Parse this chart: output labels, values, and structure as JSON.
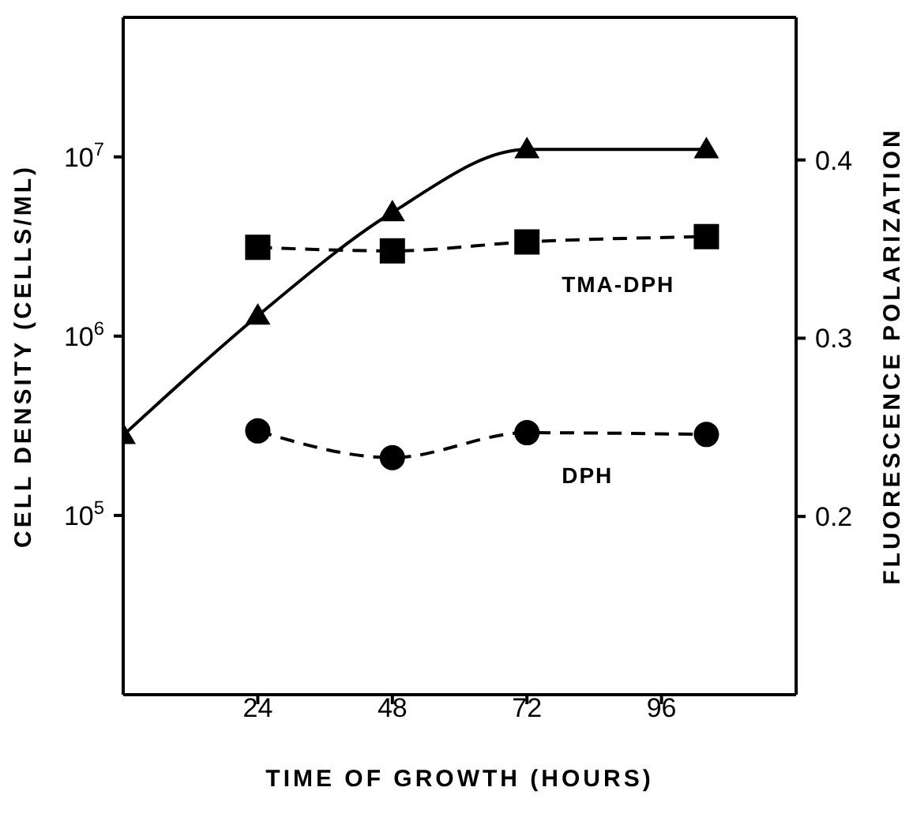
{
  "chart_data": {
    "type": "line",
    "xlabel": "TIME OF GROWTH (HOURS)",
    "ylabel": "CELL DENSITY (CELLS/ML)",
    "y2label": "FLUORESCENCE POLARIZATION",
    "xlim": [
      0,
      120
    ],
    "xticks": [
      24,
      48,
      72,
      96
    ],
    "ylim": [
      10000,
      60000000
    ],
    "yticks": [
      {
        "value": 100000,
        "label": "10$^{5}$"
      },
      {
        "value": 1000000,
        "label": "10$^{6}$"
      },
      {
        "value": 10000000,
        "label": "10$^{7}$"
      }
    ],
    "log": "y",
    "y2lim": [
      0.1,
      0.48
    ],
    "y2ticks": [
      0.2,
      0.3,
      0.4
    ],
    "series": [
      {
        "color": "#000000",
        "marker": "triangle",
        "line_style": "solid",
        "x": [
          0,
          24,
          48,
          72,
          104
        ],
        "values": [
          280000,
          1300000,
          4900000,
          11000000,
          11000000
        ]
      },
      {
        "name": "TMA-DPH",
        "color": "#000000",
        "marker": "square",
        "line_style": "dashed",
        "axis": "y2",
        "x": [
          24,
          48,
          72,
          104
        ],
        "values": [
          0.351,
          0.349,
          0.354,
          0.357
        ]
      },
      {
        "name": "DPH",
        "color": "#000000",
        "marker": "circle",
        "line_style": "dashed",
        "axis": "y2",
        "x": [
          24,
          48,
          72,
          104
        ],
        "values": [
          0.248,
          0.233,
          0.247,
          0.246
        ]
      }
    ]
  }
}
